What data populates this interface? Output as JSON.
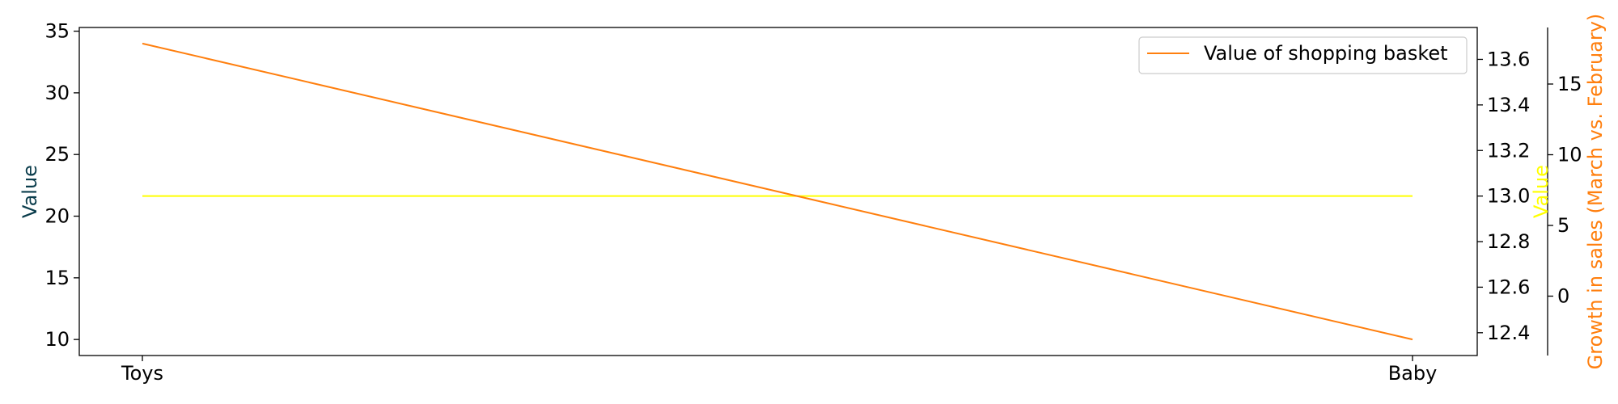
{
  "chart_data": {
    "type": "line",
    "categories": [
      "Toys",
      "Baby"
    ],
    "series": [
      {
        "name": "Value of shopping basket",
        "values": [
          34,
          10
        ],
        "color": "#ff7f0e",
        "axis": "left"
      },
      {
        "values": [
          13.0,
          13.0
        ],
        "color": "#ffff00",
        "axis": "right1"
      }
    ],
    "axes": {
      "left": {
        "label": "Value",
        "label_color": "#0b3d4c",
        "ylim": [
          8.7,
          35.3
        ],
        "ticks": [
          10,
          15,
          20,
          25,
          30,
          35
        ]
      },
      "right1": {
        "label": "Value",
        "label_color": "#ffff00",
        "ylim": [
          12.3,
          13.74
        ],
        "ticks": [
          12.4,
          12.6,
          12.8,
          13.0,
          13.2,
          13.4,
          13.6
        ]
      },
      "right2": {
        "label": "Growth in sales (March vs. February)",
        "label_color": "#ff7f0e",
        "ylim": [
          -4.2,
          19
        ],
        "ticks": [
          0,
          5,
          10,
          15
        ]
      }
    },
    "legend": {
      "placement": "top-right",
      "entries": [
        "Value of shopping basket"
      ]
    },
    "grid": false
  }
}
